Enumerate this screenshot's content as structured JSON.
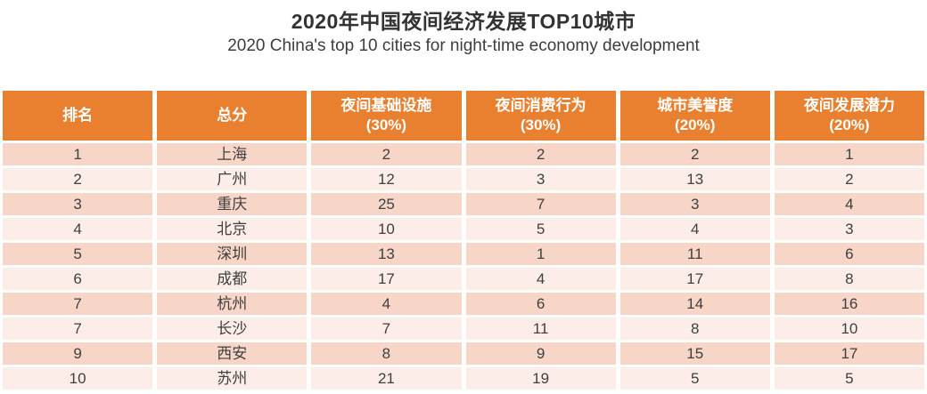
{
  "page": {
    "title": "2020年中国夜间经济发展TOP10城市",
    "subtitle": "2020 China's top 10 cities for night-time economy development"
  },
  "colors": {
    "header_bg": "#e8802f",
    "header_text": "#ffffff",
    "row_odd_bg": "#f7d5c7",
    "row_even_bg": "#fcede8",
    "cell_text": "#404040",
    "title_text": "#333333"
  },
  "table": {
    "columns": [
      {
        "label": "排名"
      },
      {
        "label": "总分"
      },
      {
        "label": "夜间基础设施\n(30%)"
      },
      {
        "label": "夜间消费行为\n(30%)"
      },
      {
        "label": "城市美誉度\n(20%)"
      },
      {
        "label": "夜间发展潜力\n(20%)"
      }
    ],
    "rows": [
      {
        "rank": "1",
        "city": "上海",
        "values": [
          "2",
          "2",
          "2",
          "1"
        ]
      },
      {
        "rank": "2",
        "city": "广州",
        "values": [
          "12",
          "3",
          "13",
          "2"
        ]
      },
      {
        "rank": "3",
        "city": "重庆",
        "values": [
          "25",
          "7",
          "3",
          "4"
        ]
      },
      {
        "rank": "4",
        "city": "北京",
        "values": [
          "10",
          "5",
          "4",
          "3"
        ]
      },
      {
        "rank": "5",
        "city": "深圳",
        "values": [
          "13",
          "1",
          "11",
          "6"
        ]
      },
      {
        "rank": "6",
        "city": "成都",
        "values": [
          "17",
          "4",
          "17",
          "8"
        ]
      },
      {
        "rank": "7",
        "city": "杭州",
        "values": [
          "4",
          "6",
          "14",
          "16"
        ]
      },
      {
        "rank": "7",
        "city": "长沙",
        "values": [
          "7",
          "11",
          "8",
          "10"
        ]
      },
      {
        "rank": "9",
        "city": "西安",
        "values": [
          "8",
          "9",
          "15",
          "17"
        ]
      },
      {
        "rank": "10",
        "city": "苏州",
        "values": [
          "21",
          "19",
          "5",
          "5"
        ]
      }
    ]
  },
  "chart_data": {
    "type": "table",
    "title": "2020年中国夜间经济发展TOP10城市",
    "subtitle": "2020 China's top 10 cities for night-time economy development",
    "columns": [
      "排名",
      "总分",
      "夜间基础设施(30%)",
      "夜间消费行为(30%)",
      "城市美誉度(20%)",
      "夜间发展潜力(20%)"
    ],
    "rows": [
      [
        "1",
        "上海",
        "2",
        "2",
        "2",
        "1"
      ],
      [
        "2",
        "广州",
        "12",
        "3",
        "13",
        "2"
      ],
      [
        "3",
        "重庆",
        "25",
        "7",
        "3",
        "4"
      ],
      [
        "4",
        "北京",
        "10",
        "5",
        "4",
        "3"
      ],
      [
        "5",
        "深圳",
        "13",
        "1",
        "11",
        "6"
      ],
      [
        "6",
        "成都",
        "17",
        "4",
        "17",
        "8"
      ],
      [
        "7",
        "杭州",
        "4",
        "6",
        "14",
        "16"
      ],
      [
        "7",
        "长沙",
        "7",
        "11",
        "8",
        "10"
      ],
      [
        "9",
        "西安",
        "8",
        "9",
        "15",
        "17"
      ],
      [
        "10",
        "苏州",
        "21",
        "19",
        "5",
        "5"
      ]
    ],
    "layout": {
      "header_style": "orange-band",
      "row_striping": "alternating-pink",
      "grid": "white-gaps"
    }
  }
}
